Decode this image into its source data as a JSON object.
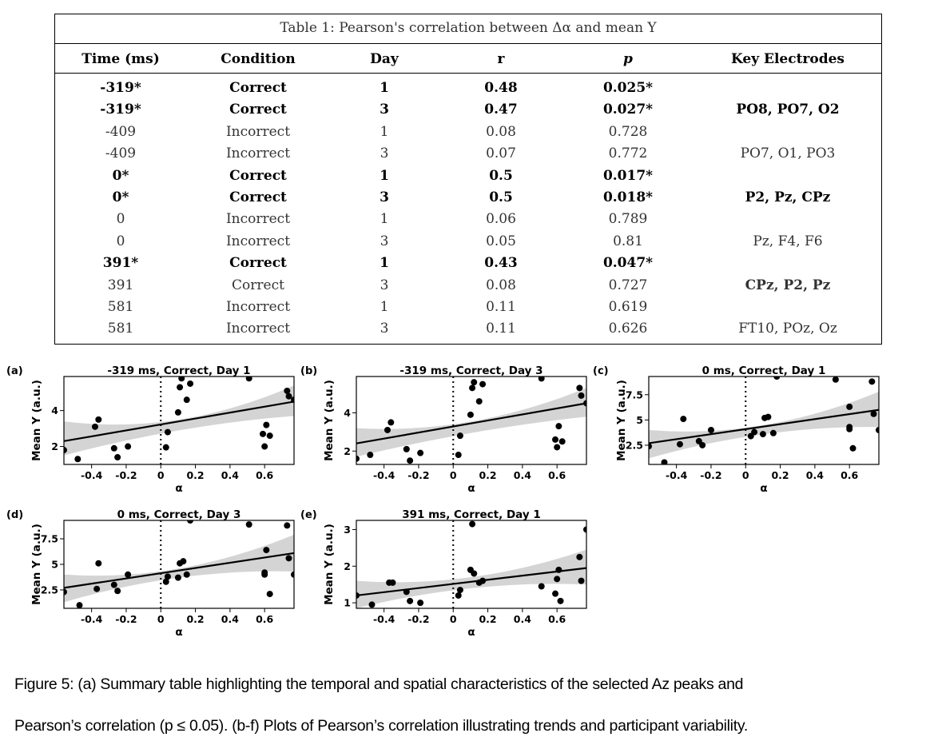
{
  "table": {
    "caption": "Table 1: Pearson's correlation between Δα and mean Y",
    "headers": [
      "Time (ms)",
      "Condition",
      "Day",
      "r",
      "p",
      "Key Electrodes"
    ],
    "rows": [
      {
        "time": "-319*",
        "condition": "Correct",
        "day": "1",
        "r": "0.48",
        "p": "0.025*",
        "electrodes": "",
        "sig": true
      },
      {
        "time": "-319*",
        "condition": "Correct",
        "day": "3",
        "r": "0.47",
        "p": "0.027*",
        "electrodes": "PO8, PO7, O2",
        "sig": true
      },
      {
        "time": "-409",
        "condition": "Incorrect",
        "day": "1",
        "r": "0.08",
        "p": "0.728",
        "electrodes": "",
        "sig": false
      },
      {
        "time": "-409",
        "condition": "Incorrect",
        "day": "3",
        "r": "0.07",
        "p": "0.772",
        "electrodes": "PO7, O1, PO3",
        "sig": false
      },
      {
        "time": "0*",
        "condition": "Correct",
        "day": "1",
        "r": "0.5",
        "p": "0.017*",
        "electrodes": "",
        "sig": true
      },
      {
        "time": "0*",
        "condition": "Correct",
        "day": "3",
        "r": "0.5",
        "p": "0.018*",
        "electrodes": "P2, Pz, CPz",
        "sig": true
      },
      {
        "time": "0",
        "condition": "Incorrect",
        "day": "1",
        "r": "0.06",
        "p": "0.789",
        "electrodes": "",
        "sig": false
      },
      {
        "time": "0",
        "condition": "Incorrect",
        "day": "3",
        "r": "0.05",
        "p": "0.81",
        "electrodes": "Pz, F4, F6",
        "sig": false
      },
      {
        "time": "391*",
        "condition": "Correct",
        "day": "1",
        "r": "0.43",
        "p": "0.047*",
        "electrodes": "",
        "sig": true
      },
      {
        "time": "391",
        "condition": "Correct",
        "day": "3",
        "r": "0.08",
        "p": "0.727",
        "electrodes": "CPz, P2, Pz",
        "sig": false,
        "electrodes_bold": true
      },
      {
        "time": "581",
        "condition": "Incorrect",
        "day": "1",
        "r": "0.11",
        "p": "0.619",
        "electrodes": "",
        "sig": false
      },
      {
        "time": "581",
        "condition": "Incorrect",
        "day": "3",
        "r": "0.11",
        "p": "0.626",
        "electrodes": "FT10, POz, Oz",
        "sig": false
      }
    ]
  },
  "chart_data": [
    {
      "type": "scatter",
      "panel": "(a)",
      "title": "-319 ms, Correct, Day 1",
      "xlabel": "α",
      "ylabel": "Mean Y (a.u.)",
      "xlim": [
        -0.56,
        0.77
      ],
      "ylim": [
        1.0,
        5.9
      ],
      "xticks": [
        -0.4,
        -0.2,
        0.0,
        0.2,
        0.4,
        0.6
      ],
      "yticks": [
        2,
        4
      ],
      "fit": {
        "x0": -0.56,
        "y0": 2.3,
        "x1": 0.77,
        "y1": 4.5
      },
      "band": {
        "lo0": 1.5,
        "hi0": 3.4,
        "loMid": 2.9,
        "hiMid": 3.5,
        "lo1": 3.7,
        "hi1": 5.4
      },
      "points": [
        [
          -0.56,
          1.8
        ],
        [
          -0.48,
          1.3
        ],
        [
          -0.38,
          3.1
        ],
        [
          -0.36,
          3.5
        ],
        [
          -0.27,
          1.9
        ],
        [
          -0.25,
          1.4
        ],
        [
          -0.19,
          2.0
        ],
        [
          0.03,
          1.95
        ],
        [
          0.04,
          2.8
        ],
        [
          0.1,
          3.9
        ],
        [
          0.11,
          5.3
        ],
        [
          0.12,
          5.8
        ],
        [
          0.15,
          4.6
        ],
        [
          0.17,
          5.5
        ],
        [
          0.51,
          5.8
        ],
        [
          0.59,
          2.7
        ],
        [
          0.6,
          2.0
        ],
        [
          0.61,
          3.2
        ],
        [
          0.63,
          2.6
        ],
        [
          0.73,
          5.1
        ],
        [
          0.74,
          4.8
        ],
        [
          0.77,
          4.6
        ]
      ]
    },
    {
      "type": "scatter",
      "panel": "(b)",
      "title": "-319 ms, Correct, Day 3",
      "xlabel": "α",
      "ylabel": "Mean Y (a.u.)",
      "xlim": [
        -0.56,
        0.77
      ],
      "ylim": [
        1.3,
        5.9
      ],
      "xticks": [
        -0.4,
        -0.2,
        0.0,
        0.2,
        0.4,
        0.6
      ],
      "yticks": [
        2,
        4
      ],
      "fit": {
        "x0": -0.56,
        "y0": 2.4,
        "x1": 0.77,
        "y1": 4.5
      },
      "band": {
        "lo0": 1.7,
        "hi0": 3.2,
        "loMid": 2.95,
        "hiMid": 3.55,
        "lo1": 3.8,
        "hi1": 5.3
      },
      "points": [
        [
          -0.56,
          1.6
        ],
        [
          -0.48,
          1.8
        ],
        [
          -0.38,
          3.1
        ],
        [
          -0.36,
          3.5
        ],
        [
          -0.27,
          2.1
        ],
        [
          -0.25,
          1.5
        ],
        [
          -0.19,
          1.9
        ],
        [
          0.03,
          1.8
        ],
        [
          0.04,
          2.8
        ],
        [
          0.1,
          3.9
        ],
        [
          0.11,
          5.3
        ],
        [
          0.12,
          5.6
        ],
        [
          0.15,
          4.6
        ],
        [
          0.17,
          5.5
        ],
        [
          0.51,
          5.8
        ],
        [
          0.59,
          2.6
        ],
        [
          0.6,
          2.2
        ],
        [
          0.61,
          3.3
        ],
        [
          0.63,
          2.5
        ],
        [
          0.73,
          5.3
        ],
        [
          0.74,
          4.9
        ],
        [
          0.77,
          4.5
        ]
      ]
    },
    {
      "type": "scatter",
      "panel": "(c)",
      "title": "0 ms, Correct, Day 1",
      "xlabel": "α",
      "ylabel": "Mean Y (a.u.)",
      "xlim": [
        -0.56,
        0.77
      ],
      "ylim": [
        0.6,
        9.3
      ],
      "xticks": [
        -0.4,
        -0.2,
        0.0,
        0.2,
        0.4,
        0.6
      ],
      "yticks": [
        2.5,
        5.0,
        7.5
      ],
      "fit": {
        "x0": -0.56,
        "y0": 2.7,
        "x1": 0.77,
        "y1": 6.0
      },
      "band": {
        "lo0": 1.2,
        "hi0": 4.0,
        "loMid": 3.6,
        "hiMid": 4.5,
        "lo1": 4.3,
        "hi1": 7.8
      },
      "points": [
        [
          -0.56,
          2.4
        ],
        [
          -0.47,
          0.8
        ],
        [
          -0.38,
          2.6
        ],
        [
          -0.36,
          5.1
        ],
        [
          -0.27,
          2.9
        ],
        [
          -0.25,
          2.5
        ],
        [
          -0.2,
          4.0
        ],
        [
          0.03,
          3.4
        ],
        [
          0.05,
          3.8
        ],
        [
          0.1,
          3.6
        ],
        [
          0.11,
          5.2
        ],
        [
          0.13,
          5.3
        ],
        [
          0.16,
          3.7
        ],
        [
          0.18,
          9.3
        ],
        [
          0.52,
          9.0
        ],
        [
          0.6,
          4.3
        ],
        [
          0.6,
          4.1
        ],
        [
          0.6,
          6.3
        ],
        [
          0.62,
          2.2
        ],
        [
          0.73,
          8.8
        ],
        [
          0.74,
          5.6
        ],
        [
          0.77,
          4.0
        ]
      ]
    },
    {
      "type": "scatter",
      "panel": "(d)",
      "title": "0 ms, Correct, Day 3",
      "xlabel": "α",
      "ylabel": "Mean Y (a.u.)",
      "xlim": [
        -0.56,
        0.77
      ],
      "ylim": [
        0.7,
        9.3
      ],
      "xticks": [
        -0.4,
        -0.2,
        0.0,
        0.2,
        0.4,
        0.6
      ],
      "yticks": [
        2.5,
        5.0,
        7.5
      ],
      "fit": {
        "x0": -0.56,
        "y0": 2.7,
        "x1": 0.77,
        "y1": 6.1
      },
      "band": {
        "lo0": 1.3,
        "hi0": 4.0,
        "loMid": 3.7,
        "hiMid": 4.6,
        "lo1": 4.3,
        "hi1": 7.9
      },
      "points": [
        [
          -0.56,
          2.3
        ],
        [
          -0.47,
          1.0
        ],
        [
          -0.37,
          2.6
        ],
        [
          -0.36,
          5.1
        ],
        [
          -0.27,
          3.0
        ],
        [
          -0.25,
          2.4
        ],
        [
          -0.19,
          4.0
        ],
        [
          0.03,
          3.3
        ],
        [
          0.04,
          3.8
        ],
        [
          0.1,
          3.7
        ],
        [
          0.11,
          5.1
        ],
        [
          0.13,
          5.3
        ],
        [
          0.15,
          4.0
        ],
        [
          0.17,
          9.3
        ],
        [
          0.51,
          8.9
        ],
        [
          0.6,
          4.0
        ],
        [
          0.6,
          4.2
        ],
        [
          0.61,
          6.4
        ],
        [
          0.63,
          2.1
        ],
        [
          0.73,
          8.8
        ],
        [
          0.74,
          5.6
        ],
        [
          0.77,
          4.0
        ]
      ]
    },
    {
      "type": "scatter",
      "panel": "(e)",
      "title": "391 ms, Correct, Day 1",
      "xlabel": "α",
      "ylabel": "Mean Y (a.u.)",
      "xlim": [
        -0.56,
        0.77
      ],
      "ylim": [
        0.85,
        3.25
      ],
      "xticks": [
        -0.4,
        -0.2,
        0.0,
        0.2,
        0.4,
        0.6
      ],
      "yticks": [
        1,
        2,
        3
      ],
      "fit": {
        "x0": -0.56,
        "y0": 1.2,
        "x1": 0.77,
        "y1": 1.95
      },
      "band": {
        "lo0": 0.85,
        "hi0": 1.6,
        "loMid": 1.4,
        "hiMid": 1.7,
        "lo1": 1.5,
        "hi1": 2.45
      },
      "points": [
        [
          -0.56,
          1.2
        ],
        [
          -0.47,
          0.95
        ],
        [
          -0.37,
          1.55
        ],
        [
          -0.35,
          1.55
        ],
        [
          -0.27,
          1.3
        ],
        [
          -0.25,
          1.05
        ],
        [
          -0.19,
          1.0
        ],
        [
          0.03,
          1.2
        ],
        [
          0.04,
          1.35
        ],
        [
          0.1,
          1.9
        ],
        [
          0.11,
          3.15
        ],
        [
          0.12,
          1.8
        ],
        [
          0.15,
          1.55
        ],
        [
          0.17,
          1.6
        ],
        [
          0.51,
          1.45
        ],
        [
          0.59,
          1.25
        ],
        [
          0.6,
          1.65
        ],
        [
          0.61,
          1.9
        ],
        [
          0.62,
          1.05
        ],
        [
          0.73,
          2.25
        ],
        [
          0.74,
          1.6
        ],
        [
          0.77,
          3.0
        ]
      ]
    }
  ],
  "figure_caption": {
    "line1": "Figure 5: (a) Summary table highlighting the temporal and spatial characteristics of the selected Az peaks and",
    "line2": "Pearson’s correlation (p ≤ 0.05). (b-f) Plots of Pearson’s correlation illustrating trends and participant variability."
  }
}
